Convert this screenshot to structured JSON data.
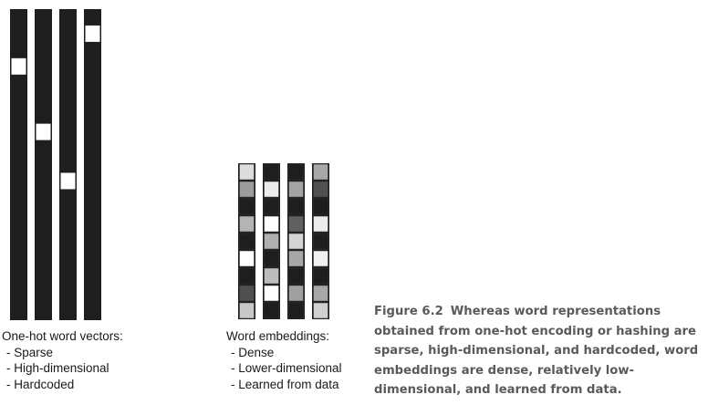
{
  "diagram": {
    "one_hot": {
      "title": "One-hot word vectors:",
      "properties": [
        "Sparse",
        "High-dimensional",
        "Hardcoded"
      ],
      "vectors": [
        {
          "hot_index": 3,
          "length": 19
        },
        {
          "hot_index": 7,
          "length": 19
        },
        {
          "hot_index": 10,
          "length": 19
        },
        {
          "hot_index": 1,
          "length": 19
        }
      ]
    },
    "embeddings": {
      "title": "Word embeddings:",
      "properties": [
        "Dense",
        "Lower-dimensional",
        "Learned from data"
      ],
      "vectors": [
        {
          "cells": [
            "#dcdcdc",
            "#9c9c9c",
            "#1e1e1e",
            "#b4b4b4",
            "#1e1e1e",
            "#ffffff",
            "#1e1e1e",
            "#505050",
            "#c8c8c8"
          ]
        },
        {
          "cells": [
            "#1e1e1e",
            "#ececec",
            "#1e1e1e",
            "#ffffff",
            "#b0b0b0",
            "#1e1e1e",
            "#bcbcbc",
            "#ffffff",
            "#1e1e1e"
          ]
        },
        {
          "cells": [
            "#1e1e1e",
            "#a4a4a4",
            "#1e1e1e",
            "#606060",
            "#d4d4d4",
            "#a8a8a8",
            "#1e1e1e",
            "#a0a0a0",
            "#1e1e1e"
          ]
        },
        {
          "cells": [
            "#a8a8a8",
            "#505050",
            "#1e1e1e",
            "#ececec",
            "#1e1e1e",
            "#f0f0f0",
            "#1e1e1e",
            "#a8a8a8",
            "#d0d0d0"
          ]
        }
      ]
    }
  },
  "caption": {
    "figure_number": "Figure 6.2",
    "text": "Whereas word representations obtained from one-hot encoding or hashing are sparse, high-dimensional, and hardcoded, word embeddings are dense, relatively low-dimensional, and learned from data."
  },
  "colors": {
    "dark": "#1e1e1e",
    "hot": "#ffffff",
    "cell_border": "#333333"
  }
}
